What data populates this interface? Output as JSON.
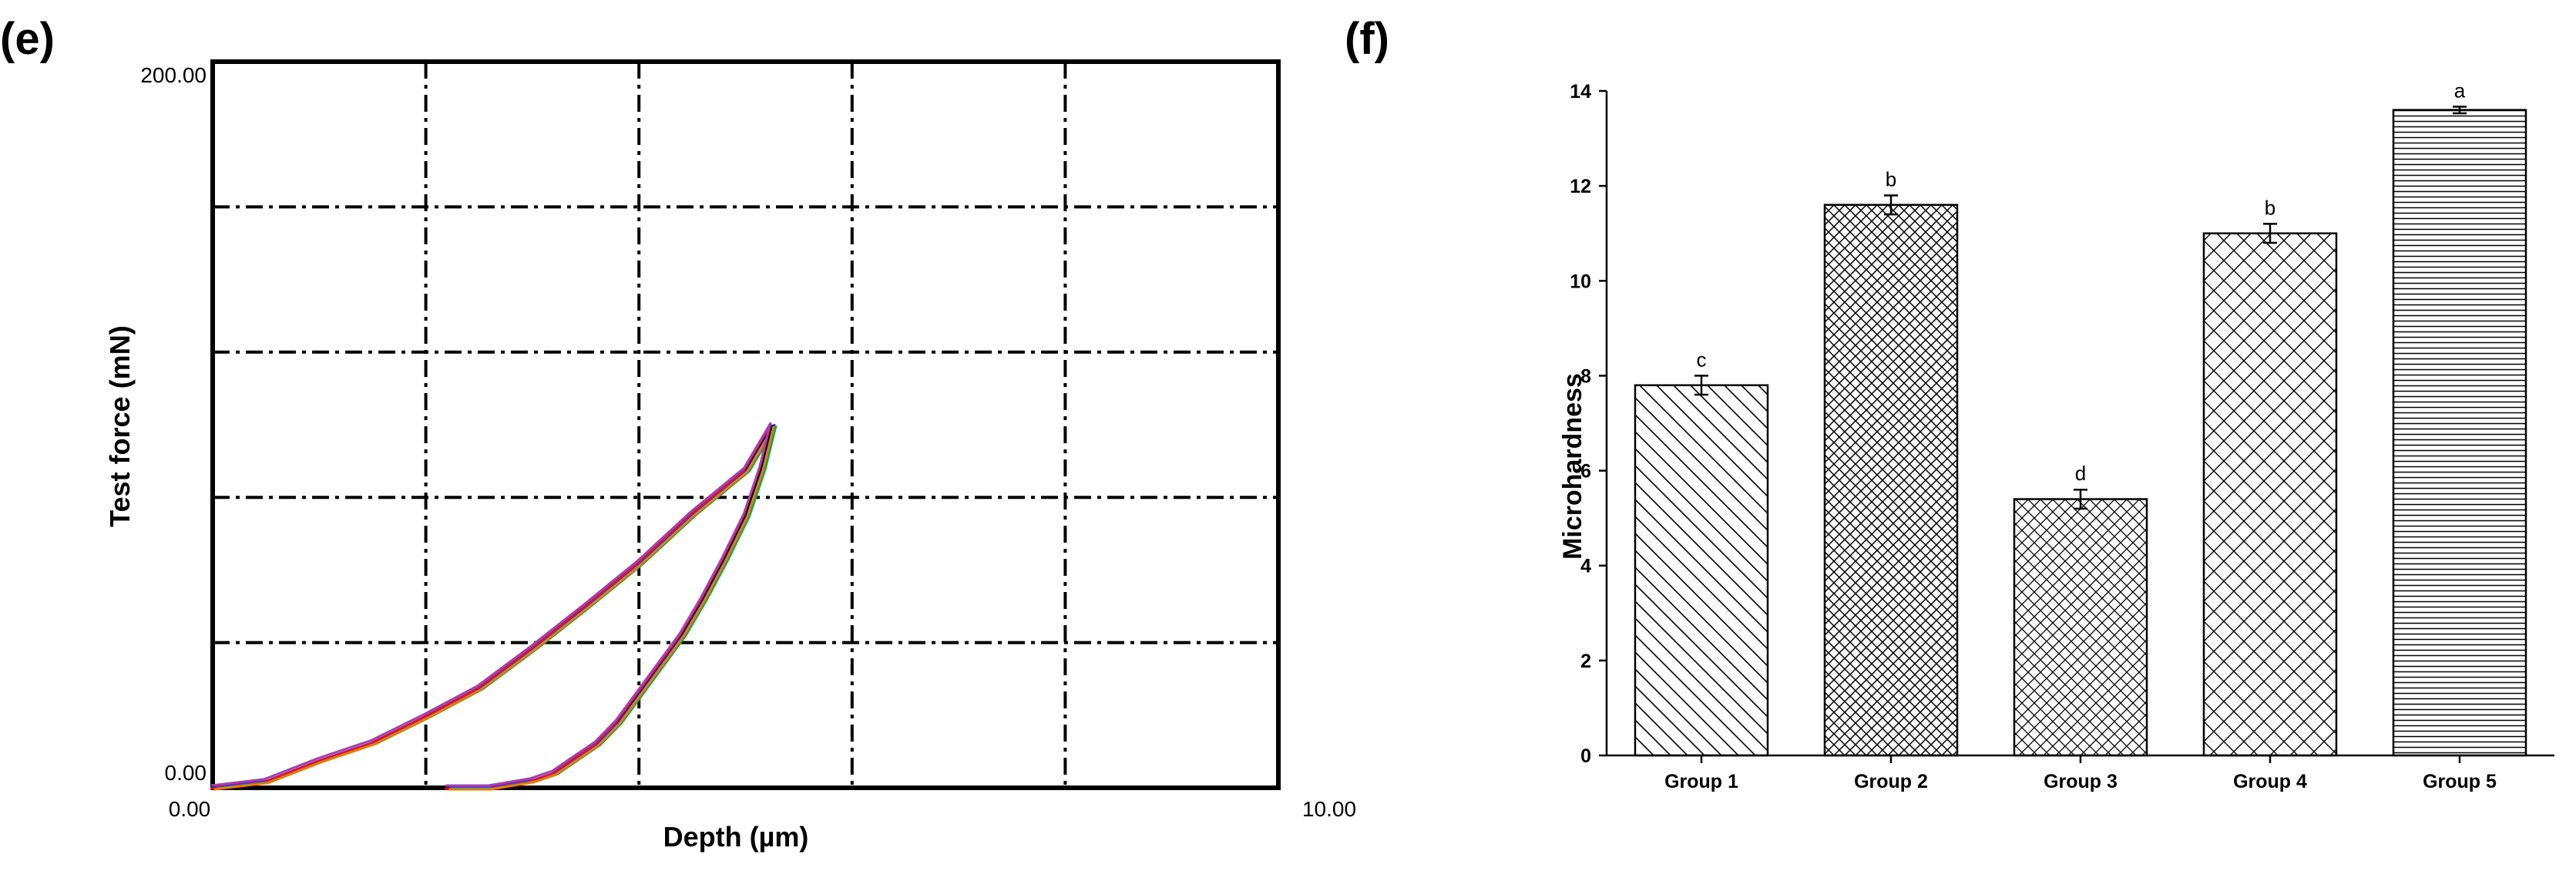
{
  "figure": {
    "panel_e_label": "(e)",
    "panel_f_label": "(f)"
  },
  "chart_data": [
    {
      "panel": "(e)",
      "type": "line",
      "title": "",
      "xlabel": "Depth (µm)",
      "ylabel": "Test force (mN)",
      "xlim": [
        0,
        10
      ],
      "ylim": [
        0,
        200
      ],
      "x_min_label": "0.00",
      "x_max_label": "10.00",
      "y_min_label": "0.00",
      "y_max_label": "200.00",
      "grid": true,
      "series_colors": [
        "#000000",
        "#1a3fd6",
        "#d01c1c",
        "#12a84a",
        "#b03ab8",
        "#e07b1a"
      ],
      "curves": [
        {
          "segment": "loading",
          "x": [
            0,
            0.5,
            1.0,
            1.5,
            2.0,
            2.5,
            3.0,
            3.5,
            4.0,
            4.5,
            5.0,
            5.25
          ],
          "y": [
            0,
            2,
            7,
            13,
            19,
            28,
            38,
            50,
            62,
            75,
            88,
            100
          ]
        },
        {
          "segment": "unloading",
          "x": [
            5.25,
            5.15,
            5.0,
            4.8,
            4.6,
            4.4,
            4.2,
            4.0,
            3.8,
            3.6,
            3.4,
            3.2,
            3.0,
            2.8,
            2.6,
            2.4,
            2.2
          ],
          "y": [
            100,
            88,
            75,
            63,
            52,
            42,
            34,
            26,
            18,
            12,
            8,
            4,
            2,
            1,
            0,
            0,
            0
          ]
        }
      ]
    },
    {
      "panel": "(f)",
      "type": "bar",
      "title": "",
      "xlabel": "",
      "ylabel": "Microhardness",
      "ylim": [
        0,
        14
      ],
      "yticks": [
        0,
        2,
        4,
        6,
        8,
        10,
        12,
        14
      ],
      "categories": [
        "Group 1",
        "Group 2",
        "Group 3",
        "Group 4",
        "Group 5"
      ],
      "values": [
        7.8,
        11.6,
        5.4,
        11.0,
        13.6
      ],
      "errors": [
        0.2,
        0.2,
        0.2,
        0.2,
        0.07
      ],
      "significance_letters": [
        "c",
        "b",
        "d",
        "b",
        "a"
      ],
      "patterns": [
        "diag-down",
        "cross-diag",
        "cross-diag-dense",
        "cross-diag-wide",
        "horizontal"
      ]
    }
  ]
}
